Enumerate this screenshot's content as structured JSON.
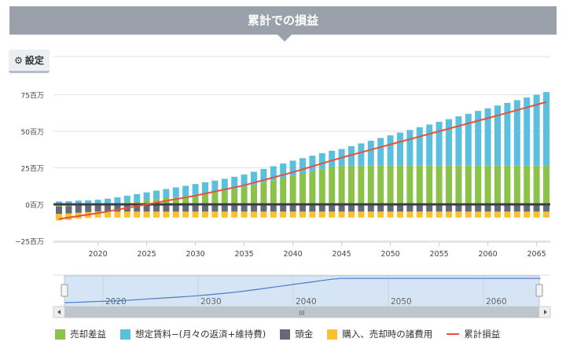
{
  "header": {
    "title": "累計での損益"
  },
  "settings": {
    "label": "設定",
    "icon": "gear-icon"
  },
  "colors": {
    "sale_profit": "#8bc34a",
    "rent": "#5bc0de",
    "down_payment": "#646b77",
    "fees": "#fbc02d",
    "cumulative": "#e8503a",
    "header_bg": "#9ba1ab"
  },
  "chart_data": {
    "type": "bar",
    "stacked": true,
    "x": [
      2016,
      2017,
      2018,
      2019,
      2020,
      2021,
      2022,
      2023,
      2024,
      2025,
      2026,
      2027,
      2028,
      2029,
      2030,
      2031,
      2032,
      2033,
      2034,
      2035,
      2036,
      2037,
      2038,
      2039,
      2040,
      2041,
      2042,
      2043,
      2044,
      2045,
      2046,
      2047,
      2048,
      2049,
      2050,
      2051,
      2052,
      2053,
      2054,
      2055,
      2056,
      2057,
      2058,
      2059,
      2060,
      2061,
      2062,
      2063,
      2064,
      2065,
      2066
    ],
    "x_ticks": [
      "2020",
      "2025",
      "2030",
      "2035",
      "2040",
      "2045",
      "2050",
      "2055",
      "2060",
      "2065"
    ],
    "y_ticks": [
      "75百万",
      "50百万",
      "25百万",
      "0百万",
      "−25百万"
    ],
    "y_tick_values": [
      75,
      50,
      25,
      0,
      -25
    ],
    "ylim": [
      -30,
      100
    ],
    "unit": "百万",
    "grid": true,
    "legend_position": "bottom",
    "series": [
      {
        "name": "売却差益",
        "kind": "bar",
        "values": [
          -1.5,
          -1.2,
          -0.8,
          -0.3,
          0,
          0.3,
          0.8,
          1.5,
          2.2,
          3,
          3.6,
          4.3,
          5,
          5.7,
          6.5,
          7.5,
          8.5,
          9.5,
          10.7,
          12,
          13.5,
          15,
          16.5,
          18,
          19.5,
          21,
          22.5,
          24,
          25.5,
          26.5,
          26.5,
          26.5,
          26.5,
          26.5,
          26.5,
          26.5,
          26.5,
          26.5,
          26.5,
          26.5,
          26.5,
          26.5,
          26.5,
          26.5,
          26.5,
          26.5,
          26.5,
          26.5,
          26.5,
          26.5,
          26.5
        ]
      },
      {
        "name": "想定賃料−(月々の返済+維持費)",
        "kind": "bar",
        "values": [
          2,
          2.2,
          2.6,
          2.8,
          3.2,
          3.6,
          4,
          4.4,
          4.8,
          5.2,
          5.8,
          6.2,
          6.6,
          7,
          7.4,
          7.6,
          7.8,
          8,
          8.2,
          8.4,
          8.8,
          9.2,
          9.6,
          10,
          10.4,
          10.6,
          10.8,
          11,
          11.2,
          11.4,
          13.3,
          15.2,
          17,
          18.9,
          20.7,
          22.6,
          24.4,
          26.3,
          28.1,
          30,
          31.8,
          33.7,
          35.5,
          37.4,
          39.2,
          41.1,
          42.9,
          44.8,
          46.6,
          48.5,
          50.3
        ]
      },
      {
        "name": "頭金",
        "kind": "bar",
        "values": [
          -5,
          -5,
          -5,
          -5,
          -5,
          -5,
          -5,
          -5,
          -5,
          -5,
          -5,
          -5,
          -5,
          -5,
          -5,
          -5,
          -5,
          -5,
          -5,
          -5,
          -5,
          -5,
          -5,
          -5,
          -5,
          -5,
          -5,
          -5,
          -5,
          -5,
          -5,
          -5,
          -5,
          -5,
          -5,
          -5,
          -5,
          -5,
          -5,
          -5,
          -5,
          -5,
          -5,
          -5,
          -5,
          -5,
          -5,
          -5,
          -5,
          -5,
          -5
        ]
      },
      {
        "name": "購入、売却時の諸費用",
        "kind": "bar",
        "values": [
          -4.5,
          -4.5,
          -4,
          -4,
          -4,
          -4,
          -4,
          -4,
          -4,
          -4,
          -4,
          -4,
          -4,
          -4,
          -4,
          -4,
          -4,
          -4,
          -4,
          -4,
          -4,
          -4,
          -4,
          -4,
          -4,
          -4,
          -4,
          -4,
          -4,
          -4,
          -4,
          -4,
          -4,
          -4,
          -4,
          -4,
          -4,
          -4,
          -4,
          -4,
          -4,
          -4,
          -4,
          -4,
          -4,
          -4,
          -4,
          -4,
          -4,
          -4,
          -4
        ]
      },
      {
        "name": "累計損益",
        "kind": "line",
        "values": [
          -10,
          -9,
          -8,
          -7,
          -6,
          -4.8,
          -3.6,
          -2.4,
          -1.2,
          0,
          1.2,
          2.4,
          3.6,
          4.8,
          6,
          7.4,
          8.8,
          10.2,
          11.6,
          13,
          14.8,
          16.6,
          18.4,
          20.2,
          22,
          24,
          26,
          28,
          30,
          32,
          33.8,
          35.6,
          37.4,
          39.2,
          41,
          42.8,
          44.6,
          46.4,
          48.2,
          50,
          51.8,
          53.6,
          55.4,
          57.2,
          59,
          60.8,
          62.6,
          64.5,
          66.3,
          68.2,
          70
        ]
      }
    ],
    "navigator": {
      "x_ticks": [
        "2020",
        "2030",
        "2040",
        "2050",
        "2060"
      ],
      "x_tick_values": [
        2020,
        2030,
        2040,
        2050,
        2060
      ],
      "scrollbar_grip": "III"
    }
  }
}
